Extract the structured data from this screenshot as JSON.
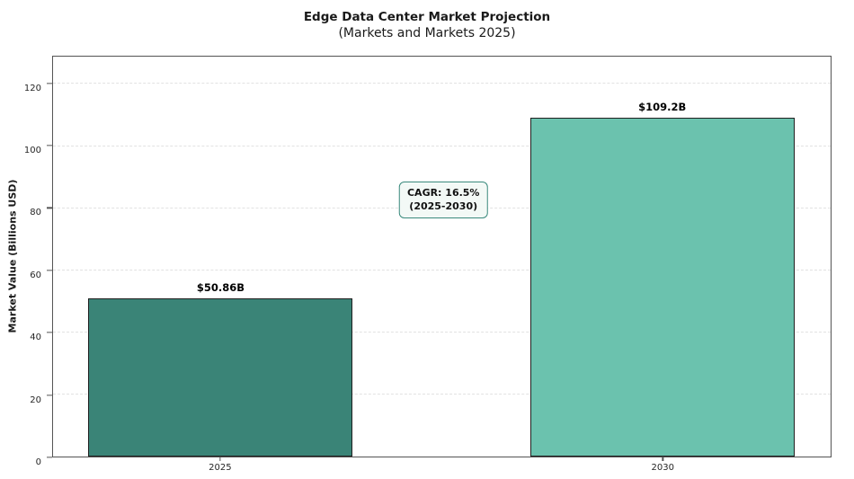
{
  "chart_data": {
    "type": "bar",
    "title": "Edge Data Center Market Projection",
    "subtitle": "(Markets and Markets 2025)",
    "ylabel": "Market Value (Billions USD)",
    "xlabel": "",
    "categories": [
      "2025",
      "2030"
    ],
    "values": [
      50.86,
      109.2
    ],
    "value_labels": [
      "$50.86B",
      "$109.2B"
    ],
    "bar_colors": [
      "#3a8477",
      "#6bc2ae"
    ],
    "bar_edge_color": "#1f1f1f",
    "ylim": [
      0,
      128.8
    ],
    "yticks": [
      0,
      20,
      40,
      60,
      80,
      100,
      120
    ],
    "grid": "horizontal-dashed",
    "gridline_color": "#e2e2e2",
    "annotation": {
      "line1": "CAGR: 16.5%",
      "line2": "(2025-2030)",
      "border_color": "#3a8a7d",
      "bg_color": "#f3f9f6"
    },
    "layout": {
      "bar_center_fracs": [
        0.2155,
        0.7835
      ],
      "bar_width_frac": 0.34,
      "legend": "none"
    }
  }
}
